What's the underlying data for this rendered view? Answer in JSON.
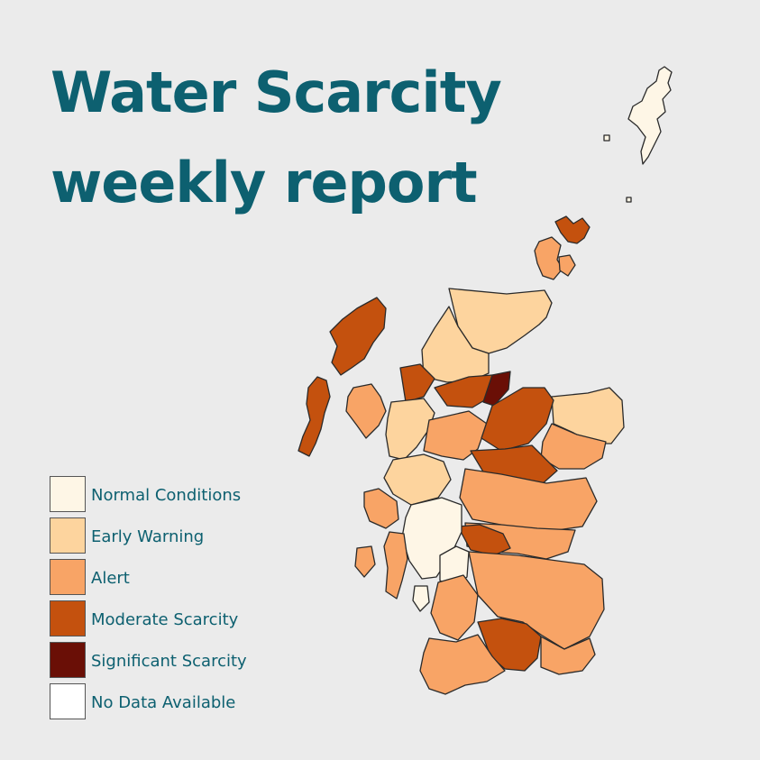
{
  "title": {
    "line1": "Water Scarcity",
    "line2": "weekly report"
  },
  "colors": {
    "background": "#ebebeb",
    "title_text": "#0d6070",
    "outline": "#2a2a2a"
  },
  "legend": {
    "items": [
      {
        "label": "Normal Conditions",
        "color": "#fef6e6"
      },
      {
        "label": "Early Warning",
        "color": "#fdd49e"
      },
      {
        "label": "Alert",
        "color": "#f8a466"
      },
      {
        "label": "Moderate Scarcity",
        "color": "#c4510e"
      },
      {
        "label": "Significant Scarcity",
        "color": "#6a0f06"
      },
      {
        "label": "No Data Available",
        "color": "#ffffff"
      }
    ]
  }
}
